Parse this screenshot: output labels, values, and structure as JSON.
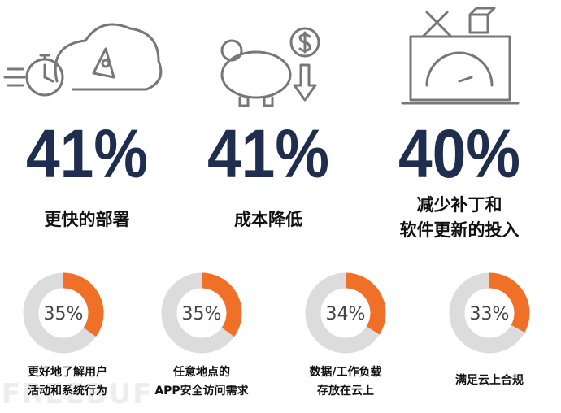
{
  "stats": [
    {
      "value": "41%",
      "caption": [
        "更快的部署"
      ]
    },
    {
      "value": "41%",
      "caption": [
        "成本降低"
      ]
    },
    {
      "value": "40%",
      "caption": [
        "减少补丁和",
        "软件更新的投入"
      ]
    }
  ],
  "donuts": [
    {
      "percent": 35,
      "label": "35%",
      "caption": [
        "更好地了解用户",
        "活动和系统行为"
      ]
    },
    {
      "percent": 35,
      "label": "35%",
      "caption": [
        "任意地点的",
        "APP安全访问需求"
      ]
    },
    {
      "percent": 34,
      "label": "34%",
      "caption": [
        "数据/工作负载",
        "存放在云上"
      ]
    },
    {
      "percent": 33,
      "label": "33%",
      "caption": [
        "满足云上合规"
      ]
    }
  ],
  "watermark": "FREEBUF"
}
